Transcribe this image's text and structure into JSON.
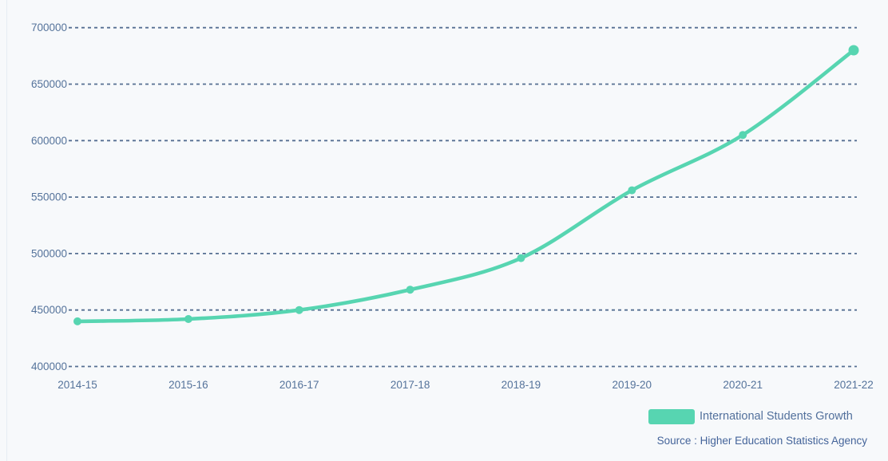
{
  "chart_data": {
    "type": "line",
    "title": "",
    "xlabel": "",
    "ylabel": "",
    "categories": [
      "2014-15",
      "2015-16",
      "2016-17",
      "2017-18",
      "2018-19",
      "2019-20",
      "2020-21",
      "2021-22"
    ],
    "series": [
      {
        "name": "International Students Growth",
        "values": [
          440000,
          442000,
          450000,
          468000,
          496000,
          556000,
          605000,
          680000
        ]
      }
    ],
    "ylim": [
      400000,
      700000
    ],
    "yticks": [
      400000,
      450000,
      500000,
      550000,
      600000,
      650000,
      700000
    ],
    "ytick_labels": [
      "400000",
      "450000",
      "500000",
      "550000",
      "600000",
      "650000",
      "700000"
    ],
    "grid": "horizontal-dashed",
    "legend_position": "bottom-right",
    "curve": "smooth",
    "source": "Source : Higher Education Statistics Agency"
  },
  "colors": {
    "background": "#f7f9fb",
    "accent": "#57d5b1",
    "grid_line": "#3a5880",
    "tick_text": "#55739b",
    "legend_text": "#52709c",
    "source_text": "#44649a"
  }
}
